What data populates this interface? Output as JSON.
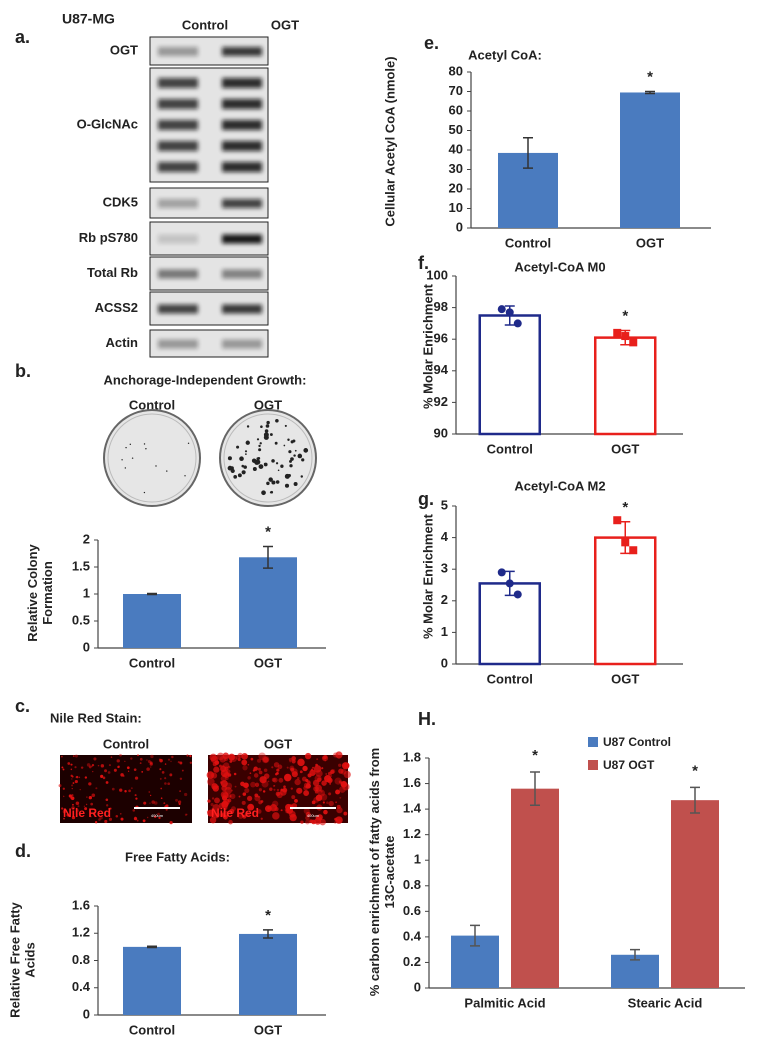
{
  "figure": {
    "cell_line": "U87-MG",
    "panel_labels": [
      "a.",
      "b.",
      "c.",
      "d.",
      "e.",
      "f.",
      "g.",
      "H."
    ]
  },
  "blot": {
    "lanes": [
      "Control",
      "OGT"
    ],
    "rows": [
      "OGT",
      "O-GlcNAc",
      "CDK5",
      "Rb pS780",
      "Total Rb",
      "ACSS2",
      "Actin"
    ]
  },
  "colony_assay": {
    "title": "Anchorage-Independent Growth:",
    "lanes": [
      "Control",
      "OGT"
    ]
  },
  "nile_red": {
    "title": "Nile Red Stain:",
    "lanes": [
      "Control",
      "OGT"
    ],
    "image_label": "Nile Red",
    "scale_bar": "400um"
  },
  "chart_data": [
    {
      "type": "bar",
      "ylabel": "Relative Colony Formation",
      "categories": [
        "Control",
        "OGT"
      ],
      "values": [
        1,
        1.68
      ],
      "errors": [
        0.01,
        0.2
      ],
      "significance": [
        null,
        "*"
      ],
      "colors": [
        "#4a7bbf",
        "#4a7bbf"
      ],
      "ylim": [
        0,
        2
      ],
      "yticks": [
        0,
        0.5,
        1,
        1.5,
        2
      ]
    },
    {
      "type": "bar",
      "title": "Free Fatty Acids:",
      "ylabel": "Relative Free Fatty Acids",
      "categories": [
        "Control",
        "OGT"
      ],
      "values": [
        1,
        1.19
      ],
      "errors": [
        0.01,
        0.06
      ],
      "significance": [
        null,
        "*"
      ],
      "colors": [
        "#4a7bbf",
        "#4a7bbf"
      ],
      "ylim": [
        0,
        1.6
      ],
      "yticks": [
        0,
        0.4,
        0.8,
        1.2,
        1.6
      ]
    },
    {
      "type": "bar",
      "title": "Acetyl CoA:",
      "ylabel": "Cellular Acetyl CoA (nmole)",
      "categories": [
        "Control",
        "OGT"
      ],
      "values": [
        38.5,
        69.5
      ],
      "errors": [
        7.8,
        0.5
      ],
      "significance": [
        null,
        "*"
      ],
      "colors": [
        "#4a7bbf",
        "#4a7bbf"
      ],
      "ylim": [
        0,
        80
      ],
      "yticks": [
        0,
        10,
        20,
        30,
        40,
        50,
        60,
        70,
        80
      ]
    },
    {
      "type": "bar",
      "style": "open",
      "title": "Acetyl-CoA M0",
      "ylabel": "% Molar Enrichment",
      "categories": [
        "Control",
        "OGT"
      ],
      "values": [
        97.5,
        96.1
      ],
      "errors": [
        0.6,
        0.45
      ],
      "points": [
        [
          97.9,
          97.7,
          97.0
        ],
        [
          96.4,
          96.2,
          95.8
        ]
      ],
      "markers": [
        "circle",
        "square"
      ],
      "significance": [
        null,
        "*"
      ],
      "colors": [
        "#1f2a8a",
        "#e8201c"
      ],
      "ylim": [
        90,
        100
      ],
      "yticks": [
        90,
        92,
        94,
        96,
        98,
        100
      ]
    },
    {
      "type": "bar",
      "style": "open",
      "title": "Acetyl-CoA M2",
      "ylabel": "% Molar Enrichment",
      "categories": [
        "Control",
        "OGT"
      ],
      "values": [
        2.55,
        4.0
      ],
      "errors": [
        0.38,
        0.5
      ],
      "points": [
        [
          2.9,
          2.55,
          2.2
        ],
        [
          4.55,
          3.85,
          3.6
        ]
      ],
      "markers": [
        "circle",
        "square"
      ],
      "significance": [
        null,
        "*"
      ],
      "colors": [
        "#1f2a8a",
        "#e8201c"
      ],
      "ylim": [
        0,
        5
      ],
      "yticks": [
        0,
        1,
        2,
        3,
        4,
        5
      ]
    },
    {
      "type": "bar",
      "ylabel": "% carbon enrichment of fatty acids from 13C-acetate",
      "categories": [
        "Palmitic Acid",
        "Stearic Acid"
      ],
      "series": [
        {
          "name": "U87 Control",
          "color": "#4a7bbf",
          "values": [
            0.41,
            0.26
          ],
          "errors": [
            0.08,
            0.04
          ]
        },
        {
          "name": "U87 OGT",
          "color": "#c0504d",
          "values": [
            1.56,
            1.47
          ],
          "errors": [
            0.13,
            0.1
          ],
          "significance": [
            "*",
            "*"
          ]
        }
      ],
      "ylim": [
        0,
        1.8
      ],
      "yticks": [
        0,
        0.2,
        0.4,
        0.6,
        0.8,
        1,
        1.2,
        1.4,
        1.6,
        1.8
      ]
    }
  ]
}
